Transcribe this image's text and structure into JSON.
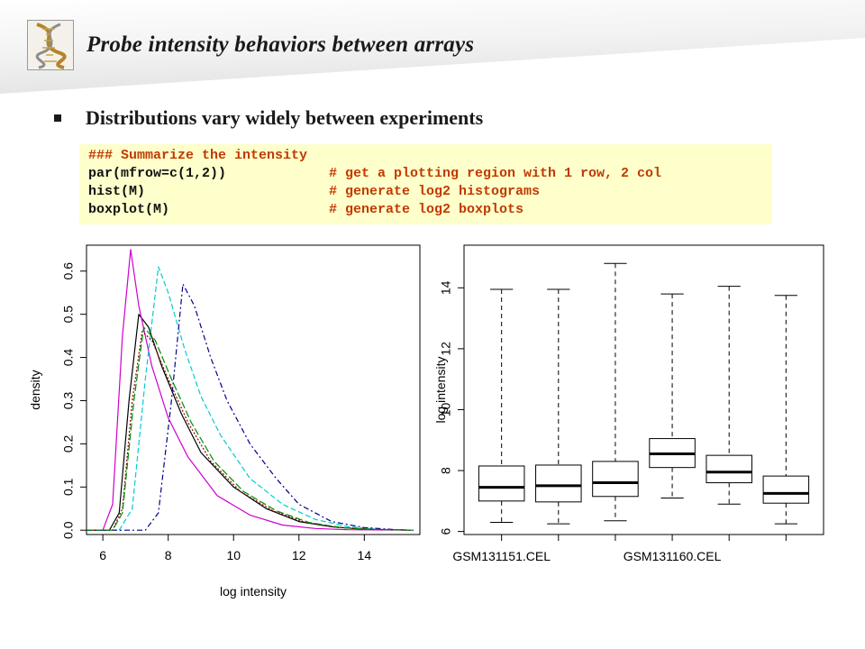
{
  "slide": {
    "title": "Probe intensity behaviors between arrays",
    "bullet": "Distributions vary widely between experiments"
  },
  "code": {
    "line1": "### Summarize the intensity",
    "line2_cmd": "par(mfrow=c(1,2))",
    "line2_comment": "# get a plotting region with 1 row, 2 col",
    "line3_cmd": "hist(M)",
    "line3_comment": "# generate log2 histograms",
    "line4_cmd": "boxplot(M)",
    "line4_comment": "# generate log2 boxplots"
  },
  "colors": {
    "code_background": "#ffffcc",
    "code_comment": "#c03a00",
    "code_command": "#111111",
    "series": [
      "#000000",
      "#cd00cd",
      "#00cdcd",
      "#00008b",
      "#8b0000",
      "#008b00"
    ]
  },
  "icons": [
    "dna-logo-icon",
    "square-bullet-icon"
  ],
  "chart_data": [
    {
      "type": "line",
      "xlabel": "log intensity",
      "ylabel": "density",
      "xlim": [
        5.5,
        15.7
      ],
      "ylim": [
        -0.01,
        0.66
      ],
      "xticks": [
        "6",
        "8",
        "10",
        "12",
        "14"
      ],
      "yticks": [
        "0.0",
        "0.1",
        "0.2",
        "0.3",
        "0.4",
        "0.5",
        "0.6"
      ],
      "series": [
        {
          "color": "#000000",
          "dash": "",
          "points": [
            [
              5.5,
              0
            ],
            [
              6.2,
              0
            ],
            [
              6.5,
              0.04
            ],
            [
              6.8,
              0.3
            ],
            [
              7.1,
              0.5
            ],
            [
              7.4,
              0.47
            ],
            [
              7.8,
              0.38
            ],
            [
              8.4,
              0.27
            ],
            [
              9.0,
              0.18
            ],
            [
              10.0,
              0.1
            ],
            [
              11.0,
              0.05
            ],
            [
              12.0,
              0.02
            ],
            [
              13.0,
              0.008
            ],
            [
              14.0,
              0.002
            ],
            [
              15.5,
              0
            ]
          ]
        },
        {
          "color": "#cd00cd",
          "dash": "",
          "points": [
            [
              5.5,
              0
            ],
            [
              6.0,
              0
            ],
            [
              6.3,
              0.06
            ],
            [
              6.6,
              0.45
            ],
            [
              6.85,
              0.65
            ],
            [
              7.1,
              0.52
            ],
            [
              7.5,
              0.38
            ],
            [
              8.0,
              0.26
            ],
            [
              8.6,
              0.17
            ],
            [
              9.5,
              0.08
            ],
            [
              10.5,
              0.035
            ],
            [
              11.5,
              0.012
            ],
            [
              12.5,
              0.004
            ],
            [
              13.5,
              0.001
            ],
            [
              15.5,
              0
            ]
          ]
        },
        {
          "color": "#00cdcd",
          "dash": "6,3",
          "points": [
            [
              5.5,
              0
            ],
            [
              6.5,
              0
            ],
            [
              6.9,
              0.05
            ],
            [
              7.3,
              0.35
            ],
            [
              7.7,
              0.61
            ],
            [
              8.0,
              0.55
            ],
            [
              8.5,
              0.42
            ],
            [
              9.0,
              0.31
            ],
            [
              9.6,
              0.22
            ],
            [
              10.5,
              0.12
            ],
            [
              11.5,
              0.06
            ],
            [
              12.5,
              0.025
            ],
            [
              13.5,
              0.008
            ],
            [
              14.5,
              0.002
            ],
            [
              15.5,
              0
            ]
          ]
        },
        {
          "color": "#00008b",
          "dash": "6,3,2,3",
          "points": [
            [
              5.5,
              0
            ],
            [
              7.3,
              0
            ],
            [
              7.7,
              0.04
            ],
            [
              8.1,
              0.3
            ],
            [
              8.45,
              0.57
            ],
            [
              8.8,
              0.52
            ],
            [
              9.3,
              0.4
            ],
            [
              9.8,
              0.3
            ],
            [
              10.5,
              0.2
            ],
            [
              11.3,
              0.12
            ],
            [
              12.0,
              0.06
            ],
            [
              13.0,
              0.02
            ],
            [
              14.0,
              0.006
            ],
            [
              15.0,
              0.001
            ],
            [
              15.5,
              0
            ]
          ]
        },
        {
          "color": "#8b0000",
          "dash": "2,2",
          "points": [
            [
              5.5,
              0
            ],
            [
              6.3,
              0
            ],
            [
              6.6,
              0.05
            ],
            [
              6.9,
              0.3
            ],
            [
              7.2,
              0.46
            ],
            [
              7.5,
              0.44
            ],
            [
              8.0,
              0.35
            ],
            [
              8.6,
              0.25
            ],
            [
              9.3,
              0.16
            ],
            [
              10.2,
              0.09
            ],
            [
              11.2,
              0.045
            ],
            [
              12.2,
              0.018
            ],
            [
              13.2,
              0.006
            ],
            [
              14.2,
              0.002
            ],
            [
              15.5,
              0
            ]
          ]
        },
        {
          "color": "#008b00",
          "dash": "8,3",
          "points": [
            [
              5.5,
              0
            ],
            [
              6.3,
              0
            ],
            [
              6.6,
              0.04
            ],
            [
              6.95,
              0.3
            ],
            [
              7.25,
              0.47
            ],
            [
              7.6,
              0.44
            ],
            [
              8.1,
              0.35
            ],
            [
              8.7,
              0.25
            ],
            [
              9.4,
              0.16
            ],
            [
              10.3,
              0.09
            ],
            [
              11.3,
              0.045
            ],
            [
              12.3,
              0.018
            ],
            [
              13.3,
              0.006
            ],
            [
              14.3,
              0.002
            ],
            [
              15.5,
              0
            ]
          ]
        }
      ]
    },
    {
      "type": "box",
      "ylabel": "log intensity",
      "ylim": [
        5.9,
        15.4
      ],
      "yticks": [
        "6",
        "8",
        "10",
        "12",
        "14"
      ],
      "xticks": [
        "GSM131151.CEL",
        "GSM131160.CEL"
      ],
      "boxes": [
        {
          "min": 6.3,
          "q1": 7.0,
          "median": 7.45,
          "q3": 8.15,
          "max": 13.95
        },
        {
          "min": 6.25,
          "q1": 6.97,
          "median": 7.5,
          "q3": 8.18,
          "max": 13.95
        },
        {
          "min": 6.35,
          "q1": 7.15,
          "median": 7.6,
          "q3": 8.3,
          "max": 14.8
        },
        {
          "min": 7.1,
          "q1": 8.1,
          "median": 8.55,
          "q3": 9.05,
          "max": 13.8
        },
        {
          "min": 6.9,
          "q1": 7.6,
          "median": 7.95,
          "q3": 8.5,
          "max": 14.05
        },
        {
          "min": 6.25,
          "q1": 6.93,
          "median": 7.25,
          "q3": 7.82,
          "max": 13.75
        }
      ]
    }
  ]
}
